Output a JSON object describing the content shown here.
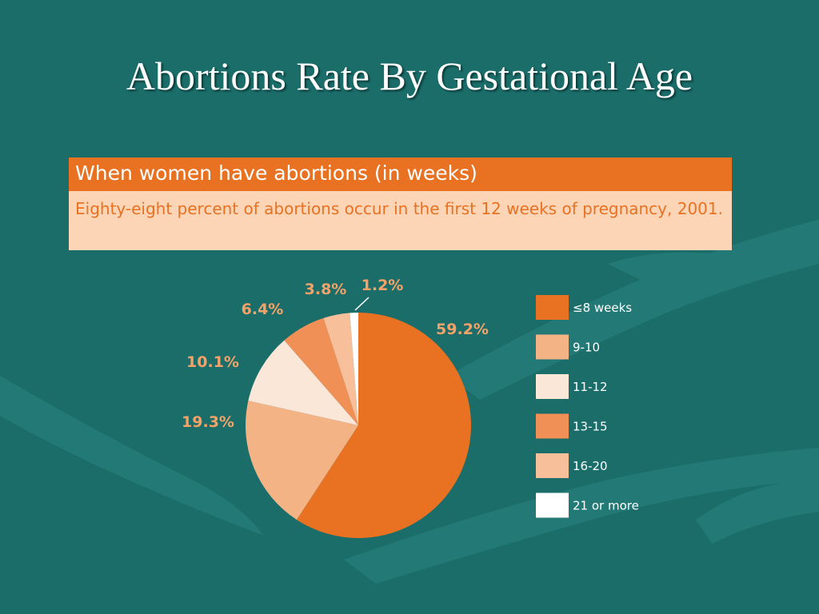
{
  "slide": {
    "title": "Abortions Rate By Gestational Age"
  },
  "header": {
    "title": "When women have abortions (in weeks)",
    "subtitle": "Eighty-eight percent of abortions occur in the first 12 weeks of pregnancy, 2001."
  },
  "colors": {
    "background": "#1b6d6a",
    "header_bar": "#e87122",
    "header_sub": "#fbd5b6",
    "label": "#f4a268"
  },
  "chart_data": {
    "type": "pie",
    "title": "When women have abortions (in weeks)",
    "legend_position": "right",
    "categories": [
      "≤8 weeks",
      "9-10",
      "11-12",
      "13-15",
      "16-20",
      "21 or more"
    ],
    "values": [
      59.2,
      19.3,
      10.1,
      6.4,
      3.8,
      1.2
    ],
    "labels": [
      "59.2%",
      "19.3%",
      "10.1%",
      "6.4%",
      "3.8%",
      "1.2%"
    ],
    "colors": [
      "#e87122",
      "#f4b385",
      "#fbe7d7",
      "#f09057",
      "#f7c09a",
      "#ffffff"
    ]
  }
}
